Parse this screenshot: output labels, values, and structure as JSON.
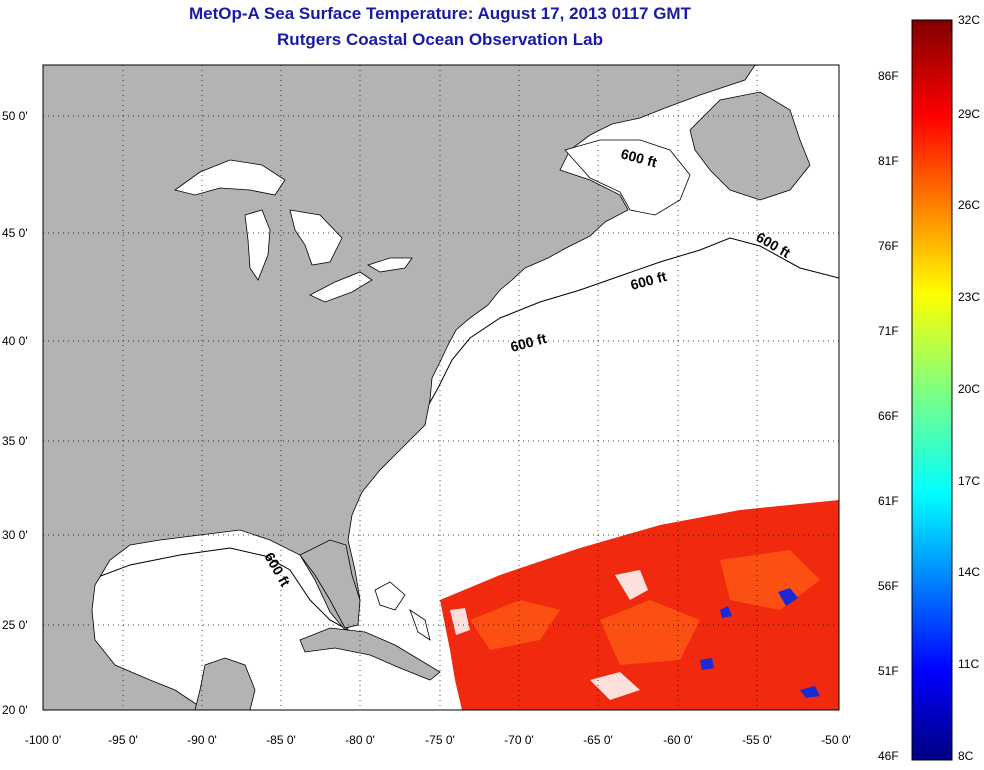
{
  "title": {
    "line1": "MetOp-A Sea Surface Temperature:  August 17, 2013 0117 GMT",
    "line2": "Rutgers Coastal Ocean Observation Lab"
  },
  "map": {
    "lon_range": [
      -100,
      -50
    ],
    "lat_range": [
      20,
      52.5
    ],
    "grid": "dotted",
    "x_ticks": [
      "-100 0'",
      "-95 0'",
      "-90 0'",
      "-85 0'",
      "-80 0'",
      "-75 0'",
      "-70 0'",
      "-65 0'",
      "-60 0'",
      "-55 0'",
      "-50 0'"
    ],
    "y_ticks": [
      "50 0'",
      "45 0'",
      "40 0'",
      "35 0'",
      "30 0'",
      "25 0'",
      "20 0'"
    ],
    "depth_label": "600 ft",
    "land_color": "#b3b3b3",
    "ocean_color": "#ffffff"
  },
  "colorbar": {
    "celsius": [
      "32C",
      "29C",
      "26C",
      "23C",
      "20C",
      "17C",
      "14C",
      "11C",
      "8C"
    ],
    "fahrenheit": [
      "86F",
      "81F",
      "76F",
      "71F",
      "66F",
      "61F",
      "56F",
      "51F",
      "46F"
    ],
    "colors": [
      "#800000",
      "#ff0000",
      "#ff8000",
      "#ffff00",
      "#80ff80",
      "#00ffff",
      "#0080ff",
      "#0000ff",
      "#000080"
    ]
  }
}
